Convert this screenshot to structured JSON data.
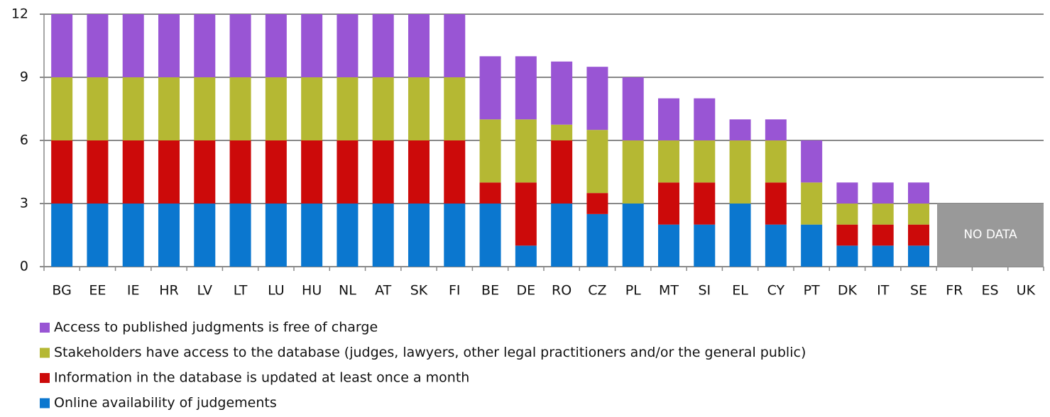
{
  "chart_data": {
    "type": "stacked_bar",
    "categories": [
      "BG",
      "EE",
      "IE",
      "HR",
      "LV",
      "LT",
      "LU",
      "HU",
      "NL",
      "AT",
      "SK",
      "FI",
      "BE",
      "DE",
      "RO",
      "CZ",
      "PL",
      "MT",
      "SI",
      "EL",
      "CY",
      "PT",
      "DK",
      "IT",
      "SE",
      "FR",
      "ES",
      "UK"
    ],
    "series": [
      {
        "name": "Online availability of judgements",
        "color": "#0b77cf",
        "values": [
          3,
          3,
          3,
          3,
          3,
          3,
          3,
          3,
          3,
          3,
          3,
          3,
          3,
          1,
          3,
          2.5,
          3,
          2,
          2,
          3,
          2,
          2,
          1,
          1,
          1,
          null,
          null,
          null
        ]
      },
      {
        "name": "Information in the database is updated at least once a month",
        "color": "#cc0a0a",
        "values": [
          3,
          3,
          3,
          3,
          3,
          3,
          3,
          3,
          3,
          3,
          3,
          3,
          1,
          3,
          3,
          1,
          0,
          2,
          2,
          0,
          2,
          0,
          1,
          1,
          1,
          null,
          null,
          null
        ]
      },
      {
        "name": "Stakeholders have access to the database (judges, lawyers, other legal practitioners and/or the general public)",
        "color": "#b5b833",
        "values": [
          3,
          3,
          3,
          3,
          3,
          3,
          3,
          3,
          3,
          3,
          3,
          3,
          3,
          3,
          0.75,
          3,
          3,
          2,
          2,
          3,
          2,
          2,
          1,
          1,
          1,
          null,
          null,
          null
        ]
      },
      {
        "name": "Access to published judgments is free of charge",
        "color": "#9955d4",
        "values": [
          3,
          3,
          3,
          3,
          3,
          3,
          3,
          3,
          3,
          3,
          3,
          3,
          3,
          3,
          3,
          3,
          3,
          2,
          2,
          1,
          1,
          2,
          1,
          1,
          1,
          null,
          null,
          null
        ]
      }
    ],
    "annotation": "NO DATA",
    "ylim": [
      0,
      12
    ],
    "yticks": [
      0,
      3,
      6,
      9,
      12
    ],
    "grid": true
  }
}
